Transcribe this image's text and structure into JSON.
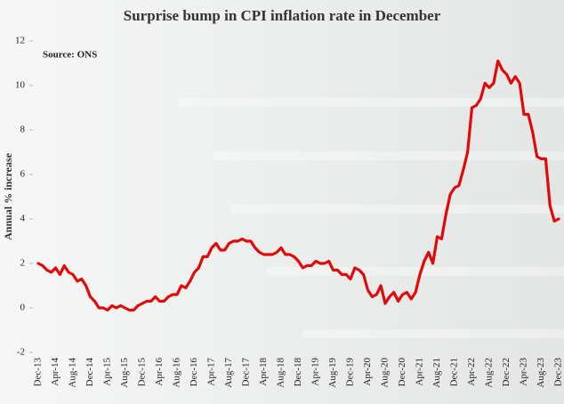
{
  "chart_data": {
    "type": "line",
    "title": "Surprise bump in CPI inflation rate in December",
    "source": "Source: ONS",
    "ylabel": "Annual % increase",
    "categories": [
      "Dec-13",
      null,
      null,
      null,
      "Apr-14",
      null,
      null,
      null,
      "Aug-14",
      null,
      null,
      null,
      "Dec-14",
      null,
      null,
      null,
      "Apr-15",
      null,
      null,
      null,
      "Aug-15",
      null,
      null,
      null,
      "Dec-15",
      null,
      null,
      null,
      "Apr-16",
      null,
      null,
      null,
      "Aug-16",
      null,
      null,
      null,
      "Dec-16",
      null,
      null,
      null,
      "Apr-17",
      null,
      null,
      null,
      "Aug-17",
      null,
      null,
      null,
      "Dec-17",
      null,
      null,
      null,
      "Apr-18",
      null,
      null,
      null,
      "Aug-18",
      null,
      null,
      null,
      "Dec-18",
      null,
      null,
      null,
      "Apr-19",
      null,
      null,
      null,
      "Aug-19",
      null,
      null,
      null,
      "Dec-19",
      null,
      null,
      null,
      "Apr-20",
      null,
      null,
      null,
      "Aug-20",
      null,
      null,
      null,
      "Dec-20",
      null,
      null,
      null,
      "Apr-21",
      null,
      null,
      null,
      "Aug-21",
      null,
      null,
      null,
      "Dec-21",
      null,
      null,
      null,
      "Apr-22",
      null,
      null,
      null,
      "Aug-22",
      null,
      null,
      null,
      "Dec-22",
      null,
      null,
      null,
      "Apr-23",
      null,
      null,
      null,
      "Aug-23",
      null,
      null,
      null,
      "Dec-23"
    ],
    "values": [
      2.0,
      1.9,
      1.7,
      1.6,
      1.8,
      1.5,
      1.9,
      1.6,
      1.5,
      1.2,
      1.3,
      1.0,
      0.5,
      0.3,
      0.0,
      0.0,
      -0.1,
      0.1,
      0.0,
      0.1,
      0.0,
      -0.1,
      -0.1,
      0.1,
      0.2,
      0.3,
      0.3,
      0.5,
      0.3,
      0.3,
      0.5,
      0.6,
      0.6,
      1.0,
      0.9,
      1.2,
      1.6,
      1.8,
      2.3,
      2.3,
      2.7,
      2.9,
      2.6,
      2.6,
      2.9,
      3.0,
      3.0,
      3.1,
      3.0,
      3.0,
      2.7,
      2.5,
      2.4,
      2.4,
      2.4,
      2.5,
      2.7,
      2.4,
      2.4,
      2.3,
      2.1,
      1.8,
      1.9,
      1.9,
      2.1,
      2.0,
      2.0,
      2.1,
      1.7,
      1.7,
      1.5,
      1.5,
      1.3,
      1.8,
      1.7,
      1.5,
      0.8,
      0.5,
      0.6,
      1.0,
      0.2,
      0.5,
      0.7,
      0.3,
      0.6,
      0.7,
      0.4,
      0.7,
      1.5,
      2.1,
      2.5,
      2.0,
      3.2,
      3.1,
      4.2,
      5.1,
      5.4,
      5.5,
      6.2,
      7.0,
      9.0,
      9.1,
      9.4,
      10.1,
      9.9,
      10.1,
      11.1,
      10.7,
      10.5,
      10.1,
      10.4,
      10.1,
      8.7,
      8.7,
      7.9,
      6.8,
      6.7,
      6.7,
      4.6,
      3.9,
      4.0
    ],
    "color": "#e00a0a",
    "ylim": [
      -2,
      12
    ],
    "yticks": [
      -2,
      0,
      2,
      4,
      6,
      8,
      10,
      12
    ],
    "grid": false
  }
}
